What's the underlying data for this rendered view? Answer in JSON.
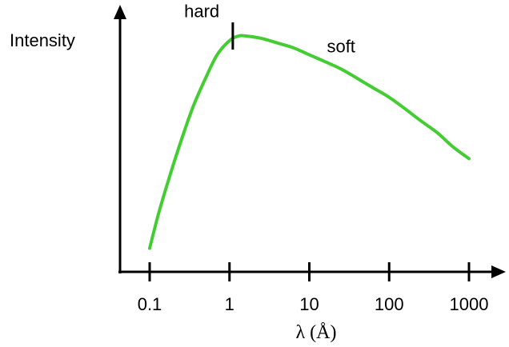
{
  "chart_data": {
    "type": "line",
    "title": "",
    "ylabel": "Intensity",
    "xlabel": "λ (Å)",
    "xscale": "log",
    "x_ticks": [
      0.1,
      1,
      10,
      100,
      1000
    ],
    "x_tick_labels": [
      "0.1",
      "1",
      "10",
      "100",
      "1000"
    ],
    "y_ticks_shown": false,
    "grid": false,
    "legend": "none",
    "series": [
      {
        "color": "#44cc33",
        "x": [
          0.1,
          0.13,
          0.18,
          0.25,
          0.35,
          0.5,
          0.7,
          1.0,
          1.3,
          1.6,
          2.5,
          4,
          6.3,
          10,
          16,
          25,
          40,
          63,
          100,
          160,
          250,
          400,
          630,
          1000
        ],
        "y": [
          0.1,
          0.25,
          0.41,
          0.56,
          0.7,
          0.82,
          0.92,
          0.98,
          1.0,
          1.0,
          0.99,
          0.97,
          0.95,
          0.92,
          0.89,
          0.86,
          0.82,
          0.78,
          0.74,
          0.69,
          0.64,
          0.59,
          0.53,
          0.48
        ]
      }
    ],
    "annotations": [
      {
        "text": "hard",
        "x": 0.45,
        "y": 1.08
      },
      {
        "text": "soft",
        "x": 25,
        "y": 0.93
      }
    ],
    "marker_tick": {
      "x": 1.1
    }
  }
}
